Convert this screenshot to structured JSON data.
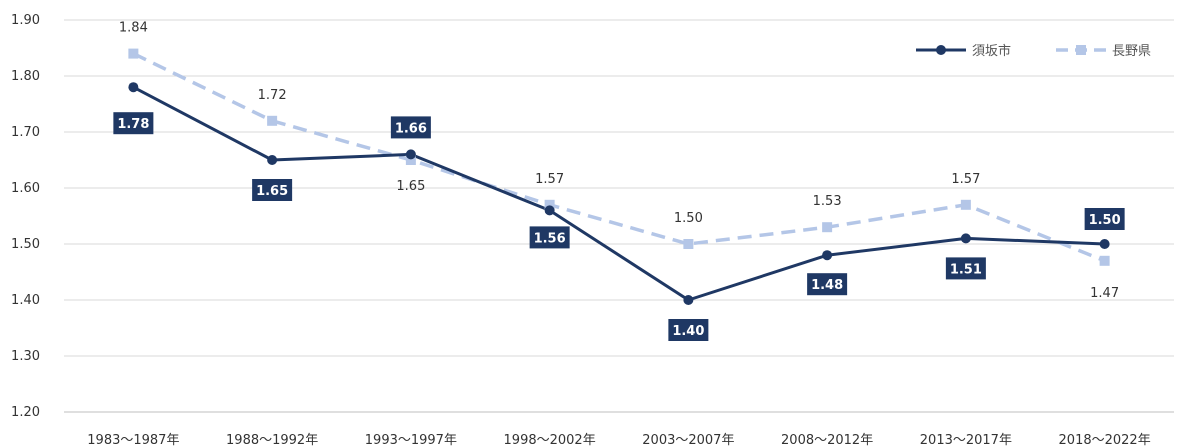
{
  "chart_data": {
    "type": "line",
    "title": "",
    "xlabel": "",
    "ylabel": "",
    "categories": [
      "1983～1987年",
      "1988～1992年",
      "1993～1997年",
      "1998～2002年",
      "2003～2007年",
      "2008～2012年",
      "2013～2017年",
      "2018～2022年"
    ],
    "ylim": [
      1.2,
      1.9
    ],
    "yticks": [
      "1.20",
      "1.30",
      "1.40",
      "1.50",
      "1.60",
      "1.70",
      "1.80",
      "1.90"
    ],
    "grid": true,
    "legend_position": "top-right",
    "series": [
      {
        "name": "須坂市",
        "color": "#1f3864",
        "style": "solid",
        "marker": "circle",
        "values": [
          1.78,
          1.65,
          1.66,
          1.56,
          1.4,
          1.48,
          1.51,
          1.5
        ],
        "labels": [
          "1.78",
          "1.65",
          "1.66",
          "1.56",
          "1.40",
          "1.48",
          "1.51",
          "1.50"
        ]
      },
      {
        "name": "長野県",
        "color": "#b4c6e7",
        "style": "dashed",
        "marker": "square",
        "values": [
          1.84,
          1.72,
          1.65,
          1.57,
          1.5,
          1.53,
          1.57,
          1.47
        ],
        "labels": [
          "1.84",
          "1.72",
          "1.65",
          "1.57",
          "1.50",
          "1.53",
          "1.57",
          "1.47"
        ]
      }
    ]
  }
}
